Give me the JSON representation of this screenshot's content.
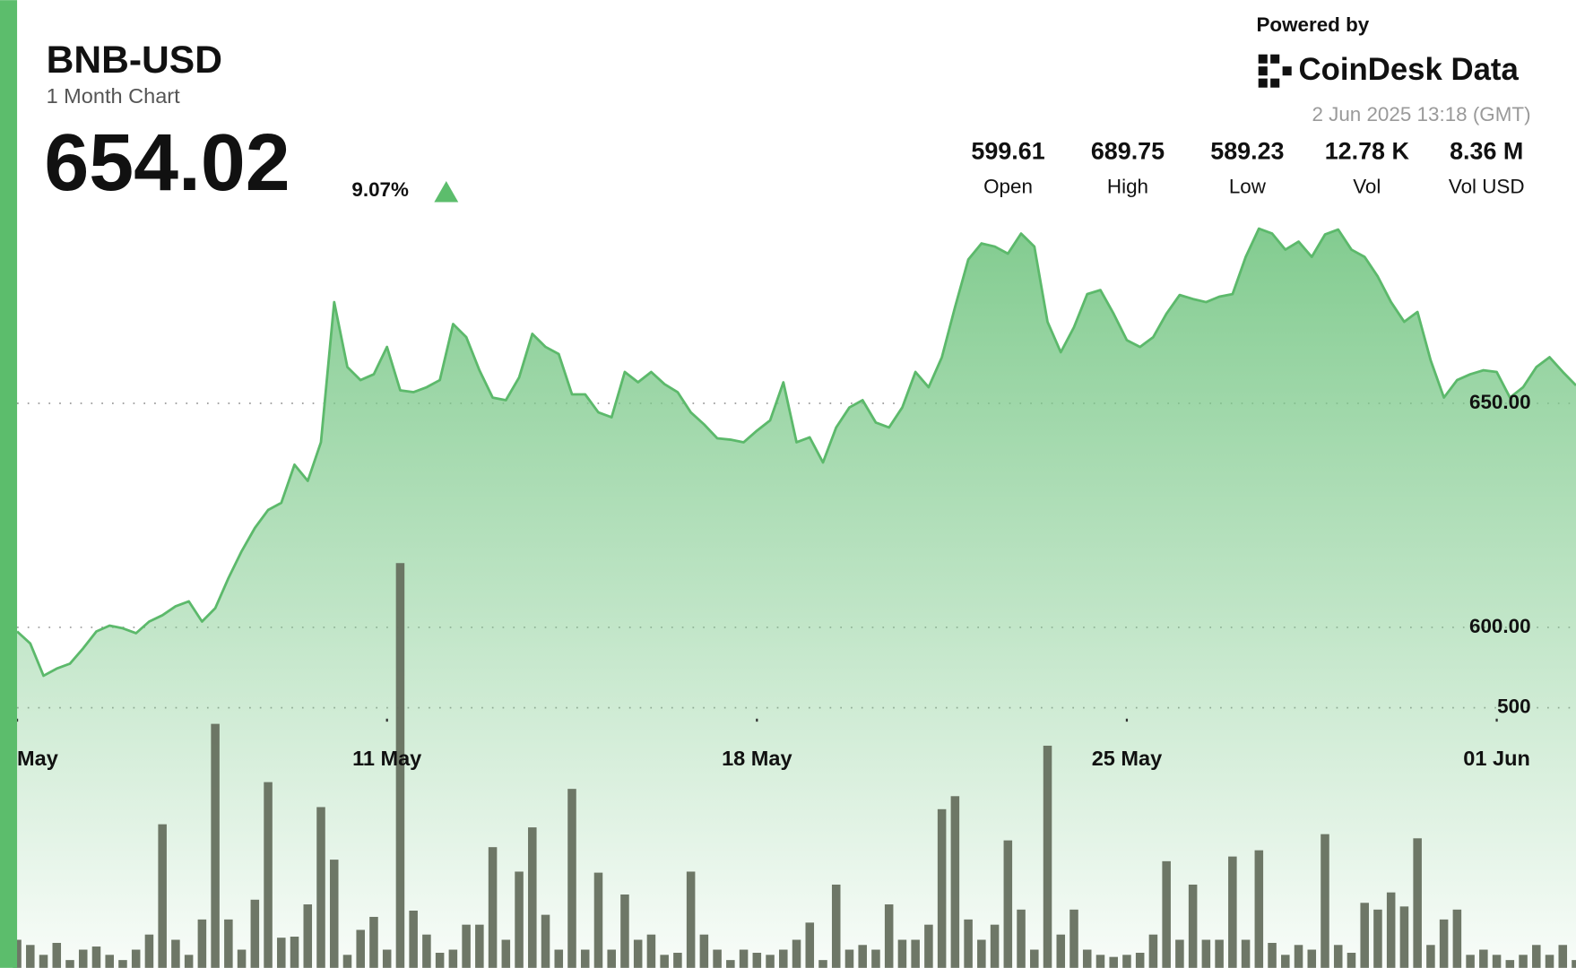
{
  "header": {
    "ticker": "BNB-USD",
    "subtitle": "1 Month Chart",
    "price": "654.02",
    "change": "9.07%",
    "powered_by": "Powered by",
    "brand": "CoinDesk Data",
    "timestamp": "2 Jun 2025 13:18 (GMT)",
    "stats": [
      {
        "value": "599.61",
        "label": "Open"
      },
      {
        "value": "689.75",
        "label": "High"
      },
      {
        "value": "589.23",
        "label": "Low"
      },
      {
        "value": "12.78 K",
        "label": "Vol"
      },
      {
        "value": "8.36 M",
        "label": "Vol USD"
      }
    ]
  },
  "chart_data": {
    "type": "area",
    "line_color": "#5cb96b",
    "fill_color": "#7cc98a",
    "volume_color": "#66705f",
    "grid": true,
    "xlim": [
      0,
      118
    ],
    "xticks": [
      {
        "value": 0,
        "label": "May"
      },
      {
        "value": 28,
        "label": "11 May"
      },
      {
        "value": 56,
        "label": "18 May"
      },
      {
        "value": 84,
        "label": "25 May"
      },
      {
        "value": 112,
        "label": "01 Jun"
      }
    ],
    "ylim": [
      524,
      740
    ],
    "yticks": [
      {
        "value": 600,
        "label": "600.00"
      },
      {
        "value": 650,
        "label": "650.00"
      }
    ],
    "y2lim": [
      0,
      1860
    ],
    "y2ticks": [
      500
    ],
    "series": [
      {
        "name": "Price",
        "values": [
          599.1,
          596.4,
          589.2,
          590.8,
          591.9,
          595.3,
          599.1,
          600.4,
          599.8,
          598.7,
          601.3,
          602.7,
          604.7,
          605.8,
          601.3,
          604.3,
          611.0,
          617.0,
          622.2,
          626.2,
          627.8,
          636.3,
          632.7,
          641.3,
          672.6,
          658.1,
          655.2,
          656.5,
          662.6,
          652.9,
          652.5,
          653.6,
          655.2,
          667.7,
          664.8,
          657.4,
          651.3,
          650.7,
          655.8,
          665.5,
          662.6,
          661.0,
          652.0,
          652.0,
          648.0,
          646.9,
          657.0,
          654.7,
          657.0,
          654.3,
          652.5,
          648.0,
          645.3,
          642.2,
          641.9,
          641.3,
          643.9,
          646.2,
          654.7,
          641.3,
          642.4,
          636.8,
          644.6,
          649.1,
          650.7,
          645.7,
          644.6,
          649.1,
          657.0,
          653.6,
          660.3,
          671.5,
          682.1,
          685.7,
          685.0,
          683.4,
          687.9,
          685.0,
          668.2,
          661.4,
          667.0,
          674.4,
          675.3,
          670.0,
          664.1,
          662.6,
          664.8,
          670.0,
          674.2,
          673.3,
          672.6,
          673.8,
          674.4,
          682.7,
          689.0,
          687.9,
          684.3,
          686.1,
          682.7,
          687.7,
          688.8,
          684.3,
          682.7,
          678.3,
          672.6,
          668.2,
          670.4,
          659.6,
          651.3,
          655.2,
          656.5,
          657.4,
          657.0,
          651.3,
          653.6,
          658.1,
          660.3,
          657.0,
          654.0
        ]
      },
      {
        "name": "Volume",
        "axis": "y2",
        "values": [
          54,
          44,
          25,
          48,
          15,
          35,
          41,
          25,
          15,
          35,
          64,
          276,
          54,
          25,
          93,
          469,
          93,
          35,
          131,
          357,
          58,
          60,
          122,
          309,
          208,
          25,
          73,
          98,
          35,
          778,
          110,
          64,
          29,
          35,
          83,
          83,
          232,
          54,
          185,
          270,
          102,
          35,
          344,
          35,
          183,
          35,
          141,
          54,
          64,
          25,
          29,
          185,
          64,
          35,
          15,
          35,
          29,
          25,
          35,
          54,
          87,
          15,
          160,
          35,
          44,
          35,
          122,
          54,
          54,
          83,
          305,
          330,
          93,
          54,
          83,
          245,
          112,
          35,
          427,
          64,
          112,
          35,
          25,
          21,
          25,
          29,
          64,
          205,
          54,
          160,
          54,
          54,
          214,
          54,
          226,
          48,
          25,
          44,
          35,
          257,
          44,
          29,
          125,
          112,
          145,
          118,
          249,
          44,
          93,
          112,
          25,
          35,
          25,
          15,
          25,
          44,
          25,
          44,
          15
        ]
      }
    ]
  }
}
